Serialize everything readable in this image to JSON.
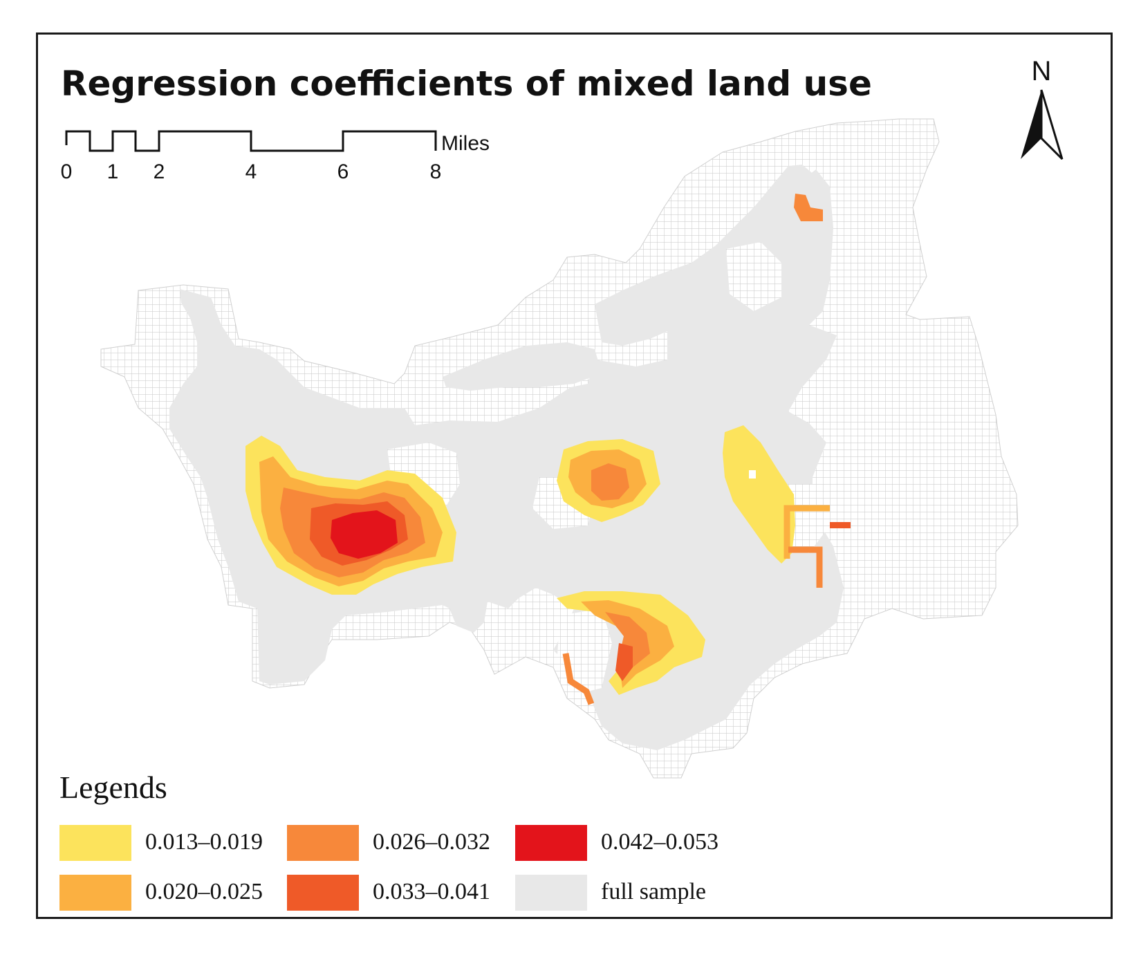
{
  "map": {
    "title": "Regression coefficients of mixed land use",
    "north_label": "N",
    "scale_bar": {
      "unit": "Miles",
      "ticks": [
        "0",
        "1",
        "2",
        "4",
        "6",
        "8"
      ]
    },
    "legend": {
      "title": "Legends",
      "items": [
        {
          "label": "0.013–0.019",
          "color": "#fce35c"
        },
        {
          "label": "0.020–0.025",
          "color": "#fbb041"
        },
        {
          "label": "0.026–0.032",
          "color": "#f7883a"
        },
        {
          "label": "0.033–0.041",
          "color": "#ef5a28"
        },
        {
          "label": "0.042–0.053",
          "color": "#e3141b"
        },
        {
          "label": "full sample",
          "color": "#e8e8e8"
        }
      ]
    },
    "colors": {
      "grid_line": "#d0d0d0",
      "frame": "#1a1a1a"
    }
  }
}
